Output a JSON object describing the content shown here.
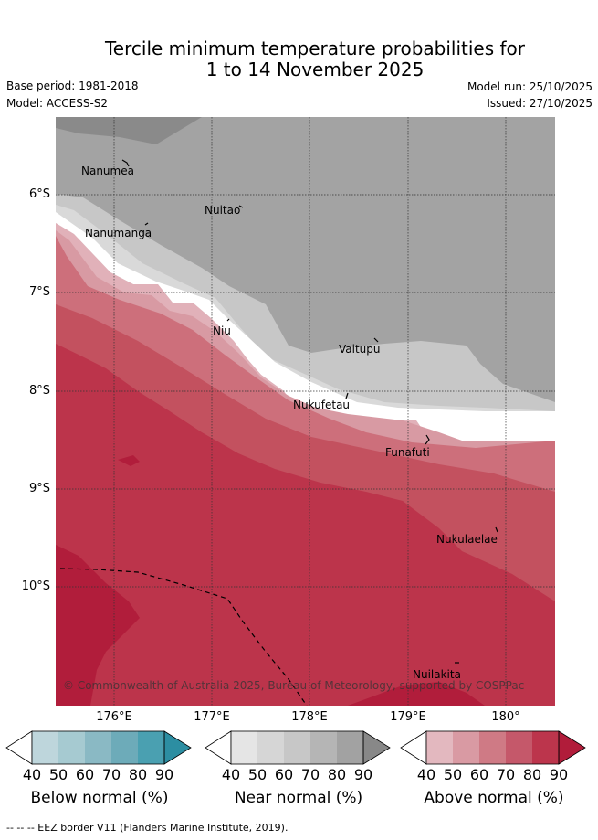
{
  "header": {
    "title_line1": "Tercile minimum temperature probabilities for",
    "title_line2": "1 to 14 November 2025",
    "base_period": "Base period: 1981-2018",
    "model": "Model: ACCESS-S2",
    "model_run": "Model run: 25/10/2025",
    "issued": "Issued: 27/10/2025"
  },
  "map": {
    "lat_labels": [
      "6°S",
      "7°S",
      "8°S",
      "9°S",
      "10°S"
    ],
    "lon_labels": [
      "176°E",
      "177°E",
      "178°E",
      "179°E",
      "180°"
    ],
    "places": [
      {
        "name": "Nanumea"
      },
      {
        "name": "Nuitao"
      },
      {
        "name": "Nanumanga"
      },
      {
        "name": "Niu"
      },
      {
        "name": "Vaitupu"
      },
      {
        "name": "Nukufetau"
      },
      {
        "name": "Funafuti"
      },
      {
        "name": "Nukulaelae"
      },
      {
        "name": "Nuilakita"
      }
    ],
    "copyright": "© Commonwealth of Australia 2025, Bureau of Meteorology, supported by COSPPac"
  },
  "colorbars": {
    "ticks": [
      "40",
      "50",
      "60",
      "70",
      "80",
      "90"
    ],
    "below": {
      "title": "Below normal (%)",
      "colors": [
        "#ffffff",
        "#bed6dc",
        "#a6cad1",
        "#8ab9c4",
        "#6dabb9",
        "#4aa0b1",
        "#2c8ea2"
      ]
    },
    "near": {
      "title": "Near normal (%)",
      "colors": [
        "#ffffff",
        "#e5e5e5",
        "#d6d6d6",
        "#c7c7c7",
        "#b5b5b5",
        "#a2a2a2",
        "#888888"
      ]
    },
    "above": {
      "title": "Above normal (%)",
      "colors": [
        "#ffffff",
        "#e3b8bf",
        "#d99aa3",
        "#cf7a85",
        "#c5586a",
        "#bc354c",
        "#b11c3a"
      ]
    }
  },
  "footer": "--  --  -- EEZ border V11 (Flanders Marine Institute, 2019)."
}
